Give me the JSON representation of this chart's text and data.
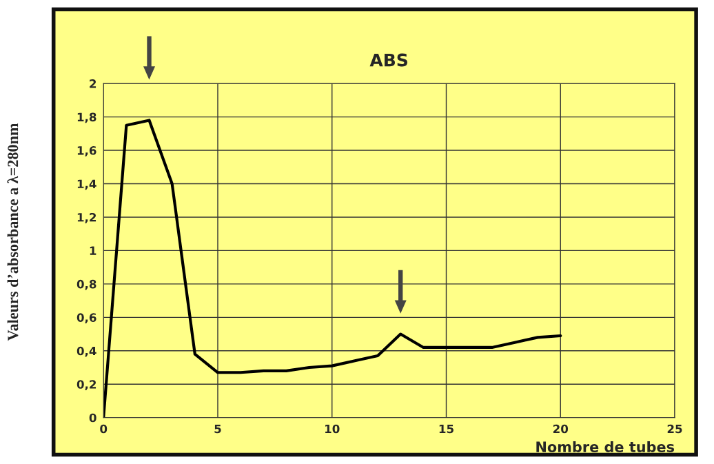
{
  "chart_data": {
    "type": "line",
    "title": "ABS",
    "xlabel": "Nombre de tubes",
    "ylabel": "Valeurs d’absorbance a λ=280nm",
    "x": [
      0,
      1,
      2,
      3,
      4,
      5,
      6,
      7,
      8,
      9,
      10,
      11,
      12,
      13,
      14,
      15,
      16,
      17,
      18,
      19,
      20
    ],
    "series": [
      {
        "color": "#000000",
        "values": [
          0,
          1.75,
          1.78,
          1.4,
          0.38,
          0.27,
          0.27,
          0.28,
          0.28,
          0.3,
          0.31,
          0.34,
          0.37,
          0.5,
          0.42,
          0.42,
          0.42,
          0.42,
          0.45,
          0.48,
          0.49
        ]
      }
    ],
    "xlim": [
      0,
      25
    ],
    "xticks": [
      0,
      5,
      10,
      15,
      20,
      25
    ],
    "ylim": [
      0,
      2
    ],
    "yticks": [
      0,
      {
        "value": 0.2,
        "label": "0,2"
      },
      {
        "value": 0.4,
        "label": "0,4"
      },
      {
        "value": 0.6,
        "label": "0,6"
      },
      {
        "value": 0.8,
        "label": "0,8"
      },
      1,
      {
        "value": 1.2,
        "label": "1,2"
      },
      {
        "value": 1.4,
        "label": "1,4"
      },
      {
        "value": 1.6,
        "label": "1,6"
      },
      {
        "value": 1.8,
        "label": "1,8"
      },
      2
    ],
    "grid": true,
    "marker": "none",
    "line_style": "solid"
  }
}
